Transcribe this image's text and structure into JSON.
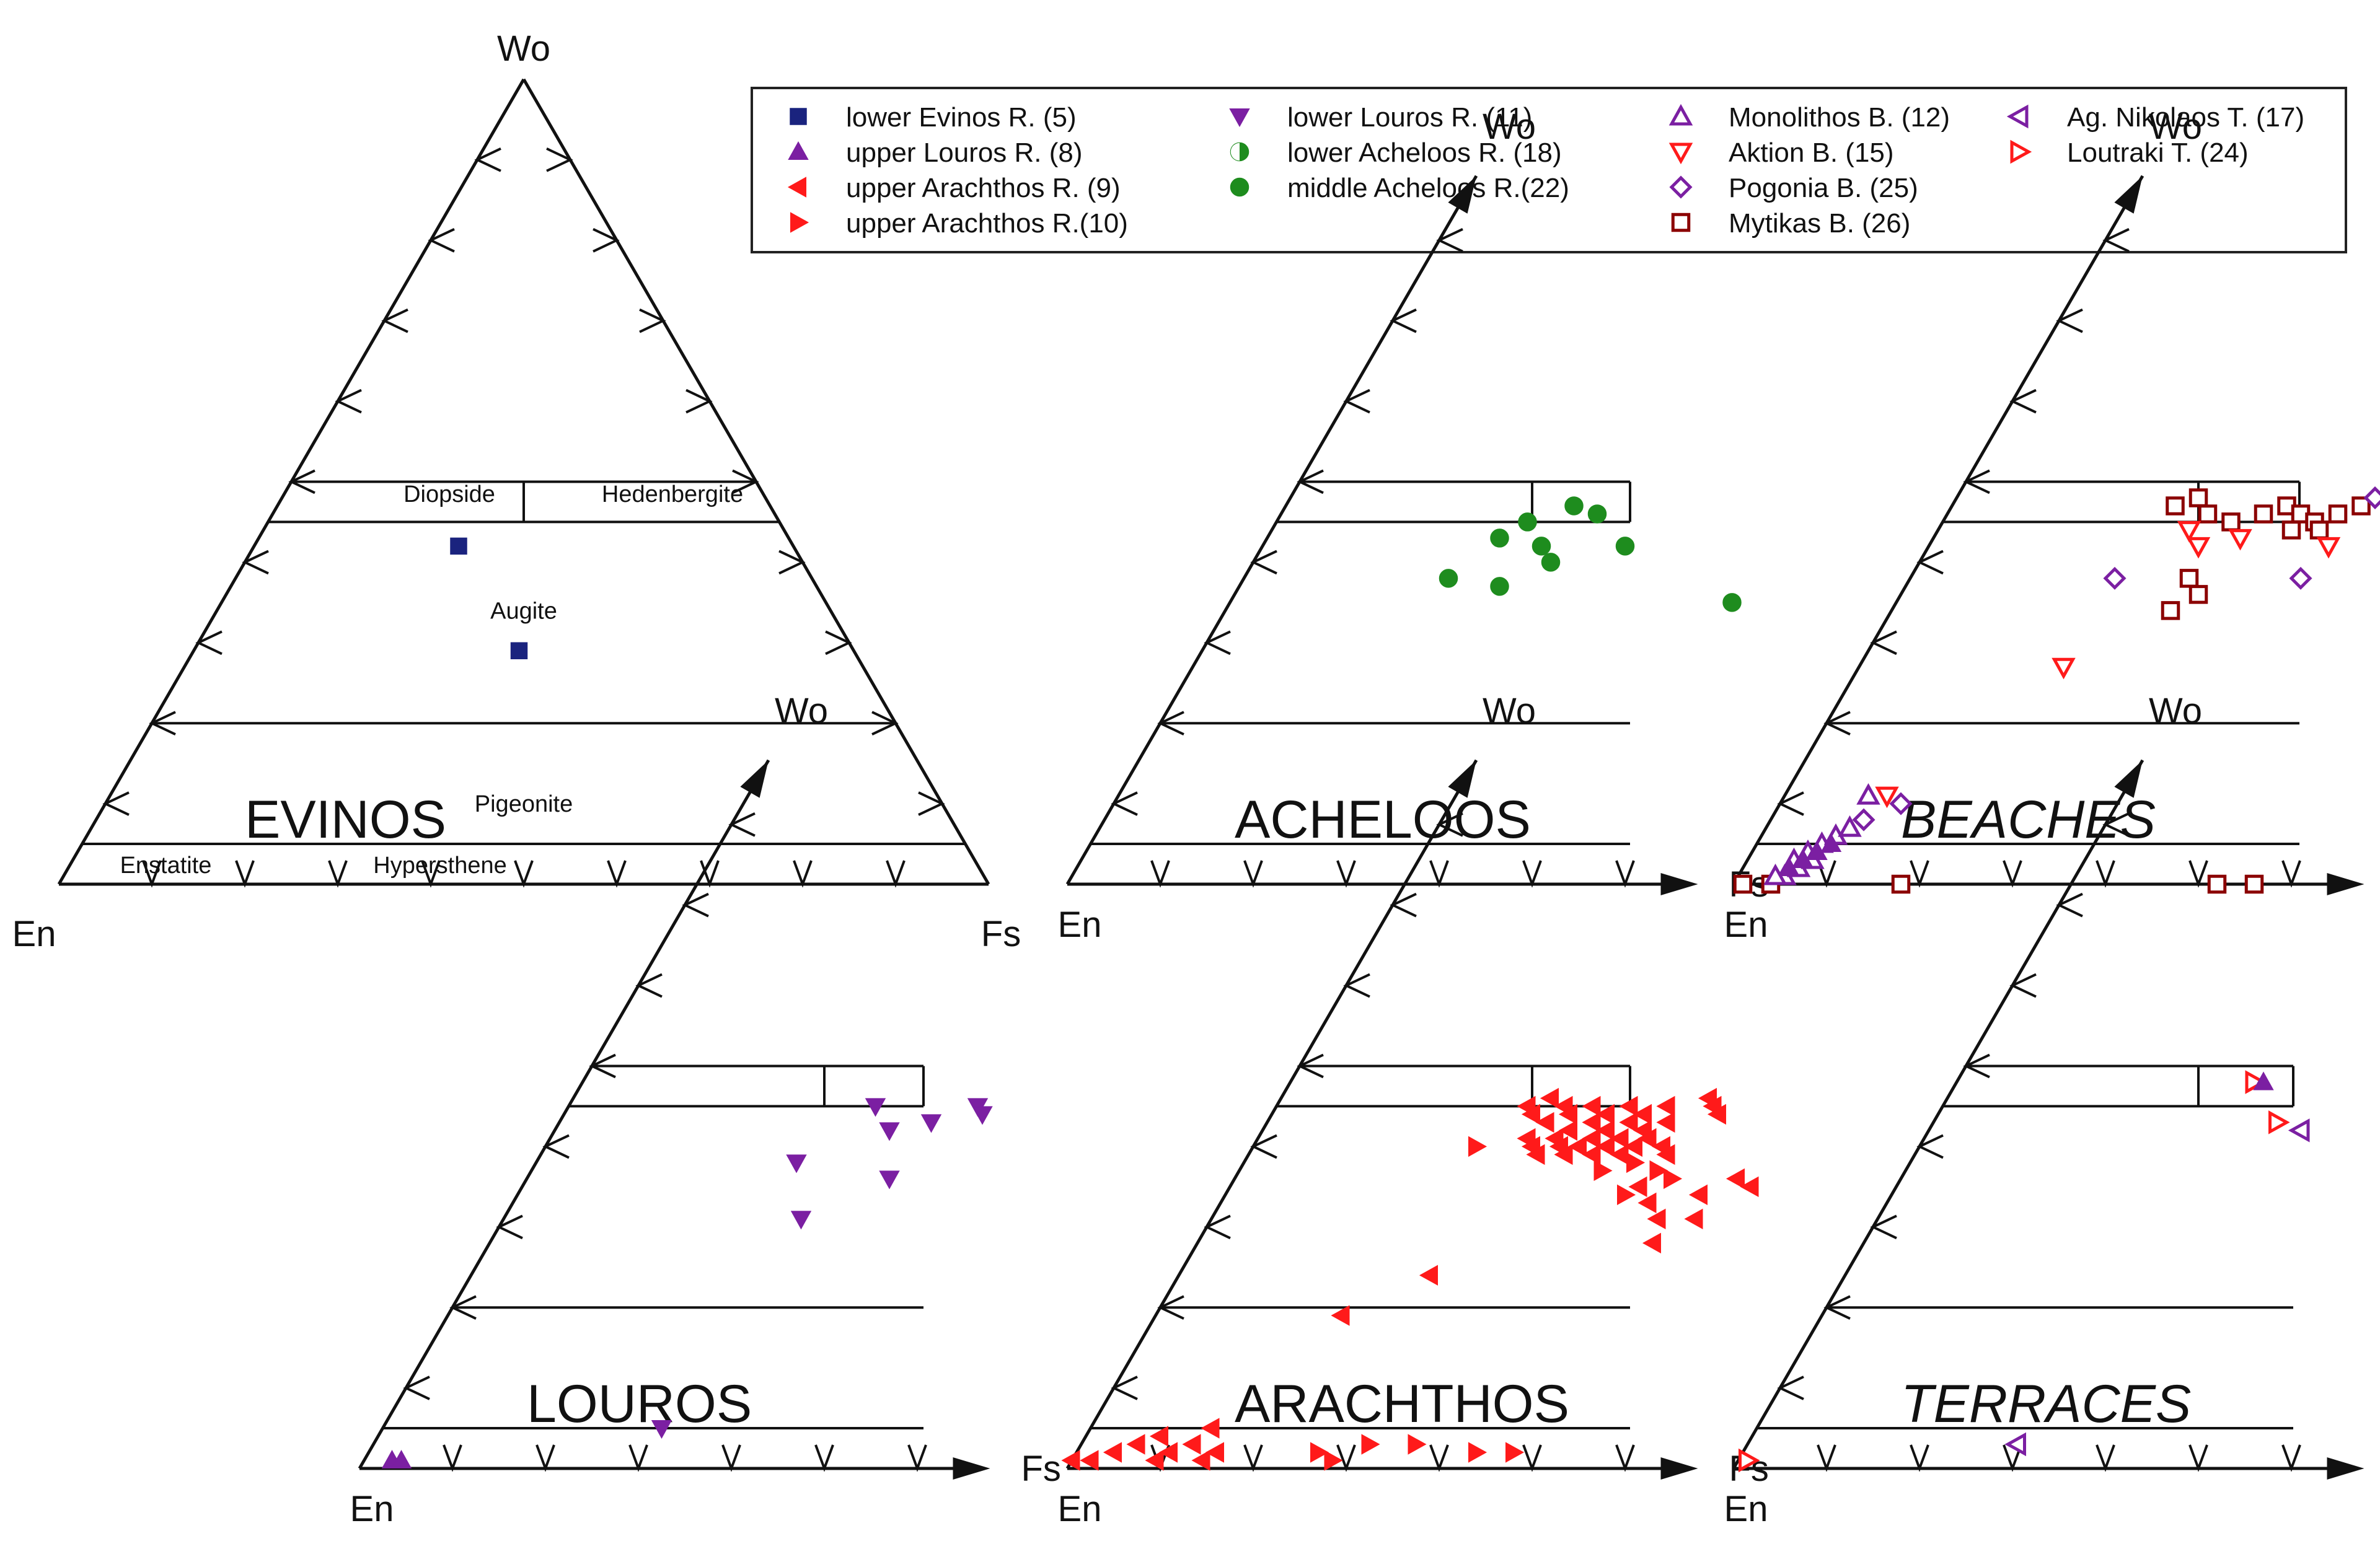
{
  "chart_data": {
    "type": "scatter",
    "legend": {
      "placement": "top-right",
      "entries": [
        {
          "label": "lower Evinos R. (5)",
          "marker": "square",
          "color": "#1a237e"
        },
        {
          "label": "upper Louros R. (8)",
          "marker": "triangle-up",
          "color": "#7b1fa2"
        },
        {
          "label": "upper Arachthos R. (9)",
          "marker": "triangle-left",
          "color": "#ff1a1a"
        },
        {
          "label": "upper Arachthos R.(10)",
          "marker": "triangle-right",
          "color": "#ff1a1a"
        },
        {
          "label": "lower Louros R. (11)",
          "marker": "triangle-down",
          "color": "#7b1fa2"
        },
        {
          "label": "lower Acheloos R. (18)",
          "marker": "circle-half",
          "color": "#1e8c1e"
        },
        {
          "label": "middle Acheloos R.(22)",
          "marker": "circle",
          "color": "#1e8c1e"
        },
        {
          "label": "Monolithos B. (12)",
          "marker": "triangle-up-open",
          "color": "#7b1fa2"
        },
        {
          "label": "Aktion B. (15)",
          "marker": "triangle-down-open",
          "color": "#ff1a1a"
        },
        {
          "label": "Pogonia B. (25)",
          "marker": "diamond-open",
          "color": "#7b1fa2"
        },
        {
          "label": "Mytikas B. (26)",
          "marker": "square-open",
          "color": "#8b0000"
        },
        {
          "label": "Ag. Nikolaos T. (17)",
          "marker": "triangle-left-open",
          "color": "#7b1fa2"
        },
        {
          "label": "Loutraki T. (24)",
          "marker": "triangle-right-open",
          "color": "#ff1a1a"
        }
      ]
    },
    "axes": {
      "wo": "Wo",
      "en": "En",
      "fs": "Fs"
    },
    "fields": {
      "diopside": "Diopside",
      "hedenbergite": "Hedenbergite",
      "augite": "Augite",
      "pigeonite": "Pigeonite",
      "enstatite": "Enstatite",
      "hypersthene": "Hypersthene"
    },
    "panels": [
      {
        "title": "EVINOS",
        "italic": false,
        "series": [
          {
            "legend": 0,
            "points": [
              [
                22,
                42
              ],
              [
                35,
                29
              ]
            ]
          }
        ]
      },
      {
        "title": "ACHELOOS",
        "italic": false,
        "series": [
          {
            "legend": 6,
            "points": [
              [
                31,
                47
              ],
              [
                27,
                45
              ],
              [
                25,
                43
              ],
              [
                34,
                46
              ],
              [
                32,
                40
              ],
              [
                39,
                42
              ],
              [
                22,
                38
              ],
              [
                28,
                37
              ],
              [
                54,
                35
              ],
              [
                30,
                42
              ]
            ]
          }
        ]
      },
      {
        "title": "BEACHES",
        "italic": true,
        "series": [
          {
            "legend": 10,
            "points": [
              [
                24,
                47
              ],
              [
                26,
                48
              ],
              [
                28,
                46
              ],
              [
                31,
                45
              ],
              [
                34,
                46
              ],
              [
                36,
                47
              ],
              [
                38,
                46
              ],
              [
                40,
                45
              ],
              [
                42,
                46
              ],
              [
                44,
                47
              ],
              [
                38,
                44
              ],
              [
                41,
                44
              ],
              [
                30,
                38
              ],
              [
                32,
                36
              ],
              [
                30,
                34
              ],
              [
                1,
                0
              ],
              [
                4,
                0
              ],
              [
                18,
                0
              ],
              [
                52,
                0
              ],
              [
                56,
                0
              ]
            ]
          },
          {
            "legend": 8,
            "points": [
              [
                27,
                44
              ],
              [
                29,
                42
              ],
              [
                33,
                43
              ],
              [
                43,
                42
              ],
              [
                22,
                27
              ],
              [
                11,
                11
              ]
            ]
          },
          {
            "legend": 9,
            "points": [
              [
                45,
                48
              ],
              [
                22,
                38
              ],
              [
                42,
                38
              ],
              [
                13,
                10
              ],
              [
                10,
                8
              ]
            ]
          },
          {
            "legend": 7,
            "points": [
              [
                5,
                3
              ],
              [
                6,
                4
              ],
              [
                7,
                5
              ],
              [
                8,
                6
              ],
              [
                9,
                7
              ],
              [
                5,
                1
              ],
              [
                6,
                2
              ],
              [
                4,
                1
              ],
              [
                7,
                3
              ],
              [
                9,
                11
              ]
            ]
          },
          {
            "legend": 1,
            "points": [
              [
                5,
                2
              ],
              [
                6,
                3
              ],
              [
                7,
                4
              ],
              [
                8,
                5
              ]
            ]
          }
        ]
      },
      {
        "title": "LOUROS",
        "italic": false,
        "series": [
          {
            "legend": 4,
            "points": [
              [
                33,
                45
              ],
              [
                36,
                42
              ],
              [
                40,
                43
              ],
              [
                44,
                45
              ],
              [
                45,
                44
              ],
              [
                28,
                38
              ],
              [
                39,
                36
              ],
              [
                32,
                31
              ],
              [
                30,
                5
              ]
            ]
          },
          {
            "legend": 1,
            "points": [
              [
                3,
                1
              ],
              [
                4,
                1
              ]
            ]
          }
        ]
      },
      {
        "title": "ARACHTHOS",
        "italic": false,
        "series": [
          {
            "legend": 2,
            "points": [
              [
                27,
                45
              ],
              [
                28,
                44
              ],
              [
                29,
                46
              ],
              [
                30,
                43
              ],
              [
                31,
                45
              ],
              [
                32,
                44
              ],
              [
                33,
                42
              ],
              [
                34,
                45
              ],
              [
                35,
                43
              ],
              [
                36,
                44
              ],
              [
                37,
                42
              ],
              [
                38,
                45
              ],
              [
                39,
                43
              ],
              [
                40,
                44
              ],
              [
                41,
                42
              ],
              [
                42,
                45
              ],
              [
                43,
                43
              ],
              [
                29,
                41
              ],
              [
                30,
                40
              ],
              [
                31,
                39
              ],
              [
                32,
                41
              ],
              [
                33,
                40
              ],
              [
                34,
                39
              ],
              [
                35,
                40
              ],
              [
                36,
                41
              ],
              [
                37,
                39
              ],
              [
                38,
                40
              ],
              [
                39,
                41
              ],
              [
                40,
                39
              ],
              [
                41,
                40
              ],
              [
                42,
                41
              ],
              [
                44,
                40
              ],
              [
                45,
                39
              ],
              [
                46,
                46
              ],
              [
                47,
                45
              ],
              [
                48,
                44
              ],
              [
                44,
                35
              ],
              [
                46,
                33
              ],
              [
                48,
                31
              ],
              [
                51,
                34
              ],
              [
                54,
                36
              ],
              [
                56,
                35
              ],
              [
                52,
                31
              ],
              [
                49,
                28
              ],
              [
                27,
                24
              ],
              [
                20,
                19
              ],
              [
                0,
                1
              ],
              [
                2,
                1
              ],
              [
                4,
                2
              ],
              [
                6,
                3
              ],
              [
                8,
                4
              ],
              [
                9,
                1
              ],
              [
                10,
                2
              ],
              [
                12,
                3
              ],
              [
                13,
                5
              ],
              [
                14,
                1
              ],
              [
                15,
                2
              ]
            ]
          },
          {
            "legend": 3,
            "points": [
              [
                24,
                40
              ],
              [
                39,
                37
              ],
              [
                42,
                38
              ],
              [
                45,
                37
              ],
              [
                43,
                34
              ],
              [
                47,
                36
              ],
              [
                26,
                2
              ],
              [
                28,
                1
              ],
              [
                31,
                3
              ],
              [
                36,
                3
              ],
              [
                43,
                2
              ],
              [
                47,
                2
              ]
            ]
          }
        ]
      },
      {
        "title": "TERRACES",
        "italic": true,
        "series": [
          {
            "legend": 11,
            "points": [
              [
                40,
                42
              ],
              [
                29,
                3
              ]
            ]
          },
          {
            "legend": 12,
            "points": [
              [
                32,
                48
              ],
              [
                37,
                43
              ],
              [
                1,
                1
              ]
            ]
          },
          {
            "legend": 1,
            "points": [
              [
                33,
                48
              ]
            ]
          }
        ]
      }
    ]
  }
}
